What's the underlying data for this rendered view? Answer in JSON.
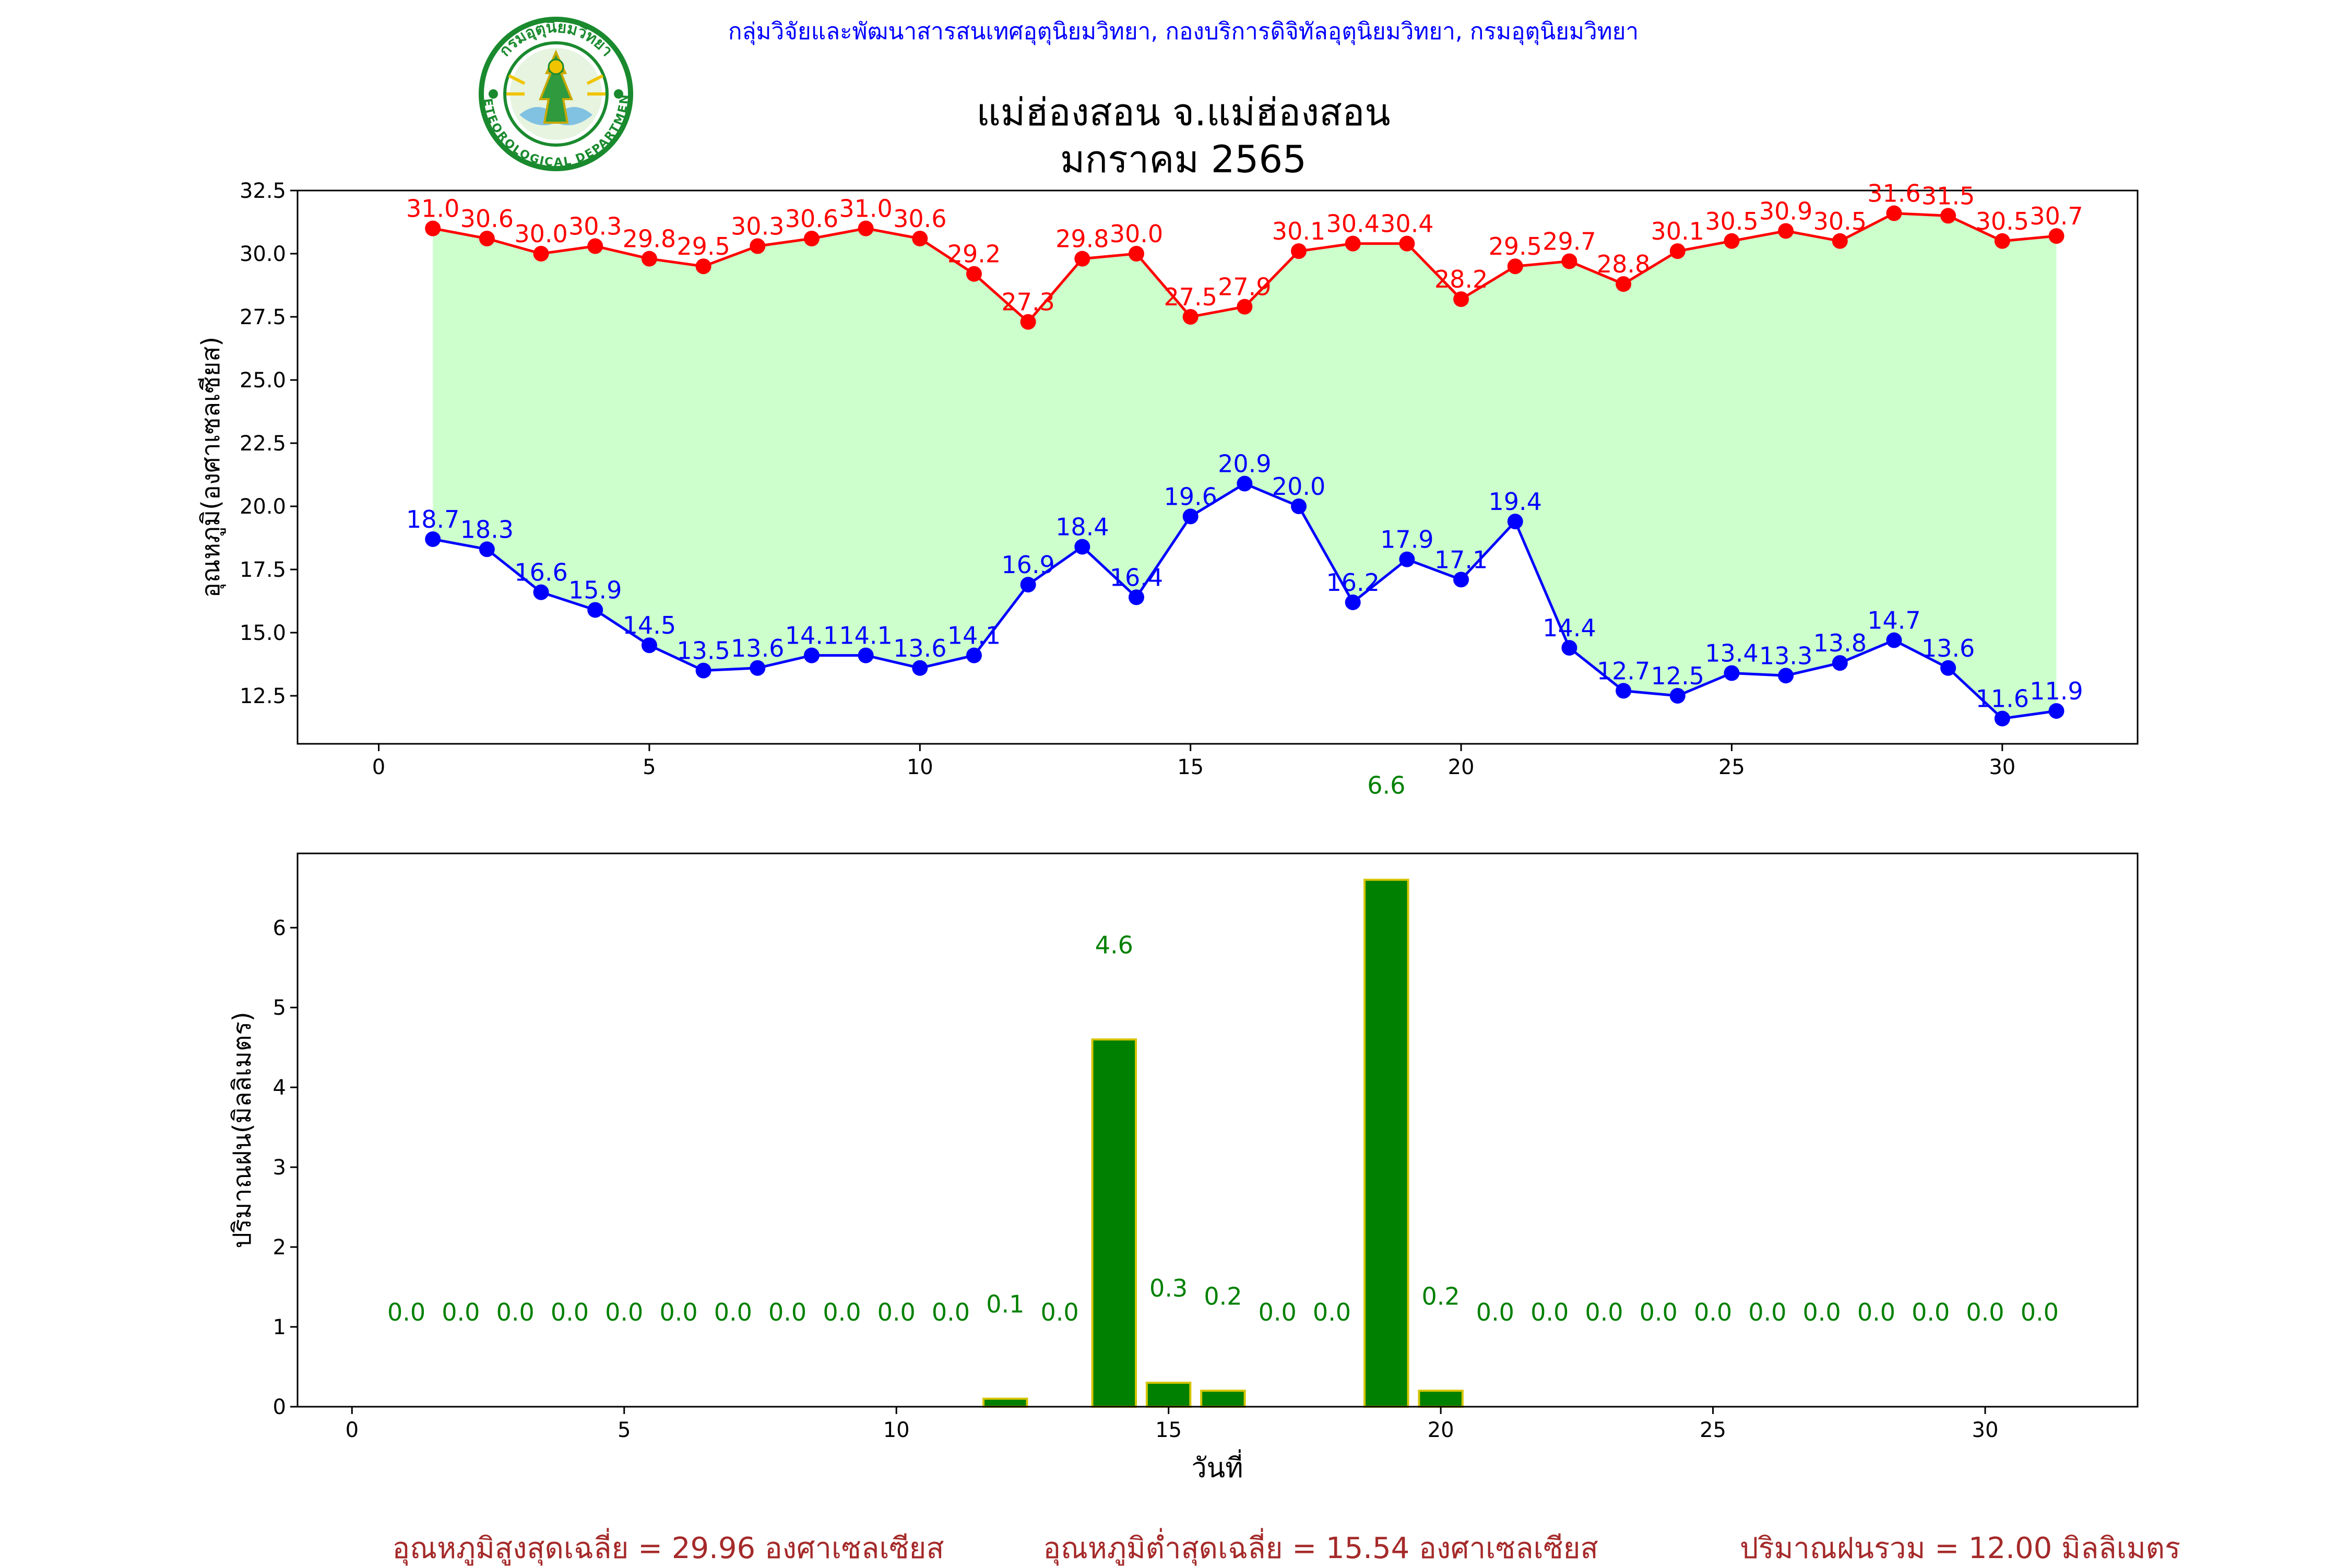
{
  "header": {
    "org_line": "กลุ่มวิจัยและพัฒนาสารสนเทศอุตุนิยมวิทยา, กองบริการดิจิทัลอุตุนิยมวิทยา, กรมอุตุนิยมวิทยา",
    "station": "แม่ฮ่องสอน จ.แม่ฮ่องสอน",
    "month": "มกราคม 2565",
    "logo_text_top": "กรมอุตุนิยมวิทยา",
    "logo_text_bottom": "METEOROLOGICAL DEPARTMENT"
  },
  "colors": {
    "max_line": "#ff0000",
    "min_line": "#0000ff",
    "fill": "#ccffcc",
    "bar_fill": "#008000",
    "bar_edge": "#d4c400",
    "bar_label": "#008000",
    "summary": "#a52a2a",
    "header_org": "#0000ff"
  },
  "chart_data": [
    {
      "type": "line",
      "ylabel": "อุณหภูมิ(องศาเซลเซียส)",
      "xlabel": "",
      "x": [
        1,
        2,
        3,
        4,
        5,
        6,
        7,
        8,
        9,
        10,
        11,
        12,
        13,
        14,
        15,
        16,
        17,
        18,
        19,
        20,
        21,
        22,
        23,
        24,
        25,
        26,
        27,
        28,
        29,
        30,
        31
      ],
      "series": [
        {
          "values": [
            31.0,
            30.6,
            30.0,
            30.3,
            29.8,
            29.5,
            30.3,
            30.6,
            31.0,
            30.6,
            29.2,
            27.3,
            29.8,
            30.0,
            27.5,
            27.9,
            30.1,
            30.4,
            30.4,
            28.2,
            29.5,
            29.7,
            28.8,
            30.1,
            30.5,
            30.9,
            30.5,
            31.6,
            31.5,
            30.5,
            30.7
          ]
        },
        {
          "values": [
            18.7,
            18.3,
            16.6,
            15.9,
            14.5,
            13.5,
            13.6,
            14.1,
            14.1,
            13.6,
            14.1,
            16.9,
            18.4,
            16.4,
            19.6,
            20.9,
            20.0,
            16.2,
            17.9,
            17.1,
            19.4,
            14.4,
            12.7,
            12.5,
            13.4,
            13.3,
            13.8,
            14.7,
            13.6,
            11.6,
            11.9
          ]
        }
      ],
      "xlim": [
        -1.5,
        32.5
      ],
      "ylim": [
        10.6,
        32.5
      ],
      "xticks": [
        0,
        5,
        10,
        15,
        20,
        25,
        30
      ],
      "yticks": [
        12.5,
        15.0,
        17.5,
        20.0,
        22.5,
        25.0,
        27.5,
        30.0,
        32.5
      ],
      "grid": false
    },
    {
      "type": "bar",
      "ylabel": "ปริมาณฝน(มิลลิเมตร)",
      "xlabel": "วันที่",
      "x": [
        1,
        2,
        3,
        4,
        5,
        6,
        7,
        8,
        9,
        10,
        11,
        12,
        13,
        14,
        15,
        16,
        17,
        18,
        19,
        20,
        21,
        22,
        23,
        24,
        25,
        26,
        27,
        28,
        29,
        30,
        31
      ],
      "values": [
        0.0,
        0.0,
        0.0,
        0.0,
        0.0,
        0.0,
        0.0,
        0.0,
        0.0,
        0.0,
        0.0,
        0.1,
        0.0,
        4.6,
        0.3,
        0.2,
        0.0,
        0.0,
        6.6,
        0.2,
        0.0,
        0.0,
        0.0,
        0.0,
        0.0,
        0.0,
        0.0,
        0.0,
        0.0,
        0.0,
        0.0
      ],
      "xlim": [
        -1,
        32.8
      ],
      "ylim": [
        0,
        6.93
      ],
      "xticks": [
        0,
        5,
        10,
        15,
        20,
        25,
        30
      ],
      "yticks": [
        0,
        1,
        2,
        3,
        4,
        5,
        6
      ],
      "grid": false
    }
  ],
  "summary": {
    "max_avg": "อุณหภูมิสูงสุดเฉลี่ย = 29.96 องศาเซลเซียส",
    "min_avg": "อุณหภูมิต่ำสุดเฉลี่ย = 15.54 องศาเซลเซียส",
    "rain_total": "ปริมาณฝนรวม = 12.00 มิลลิเมตร"
  }
}
